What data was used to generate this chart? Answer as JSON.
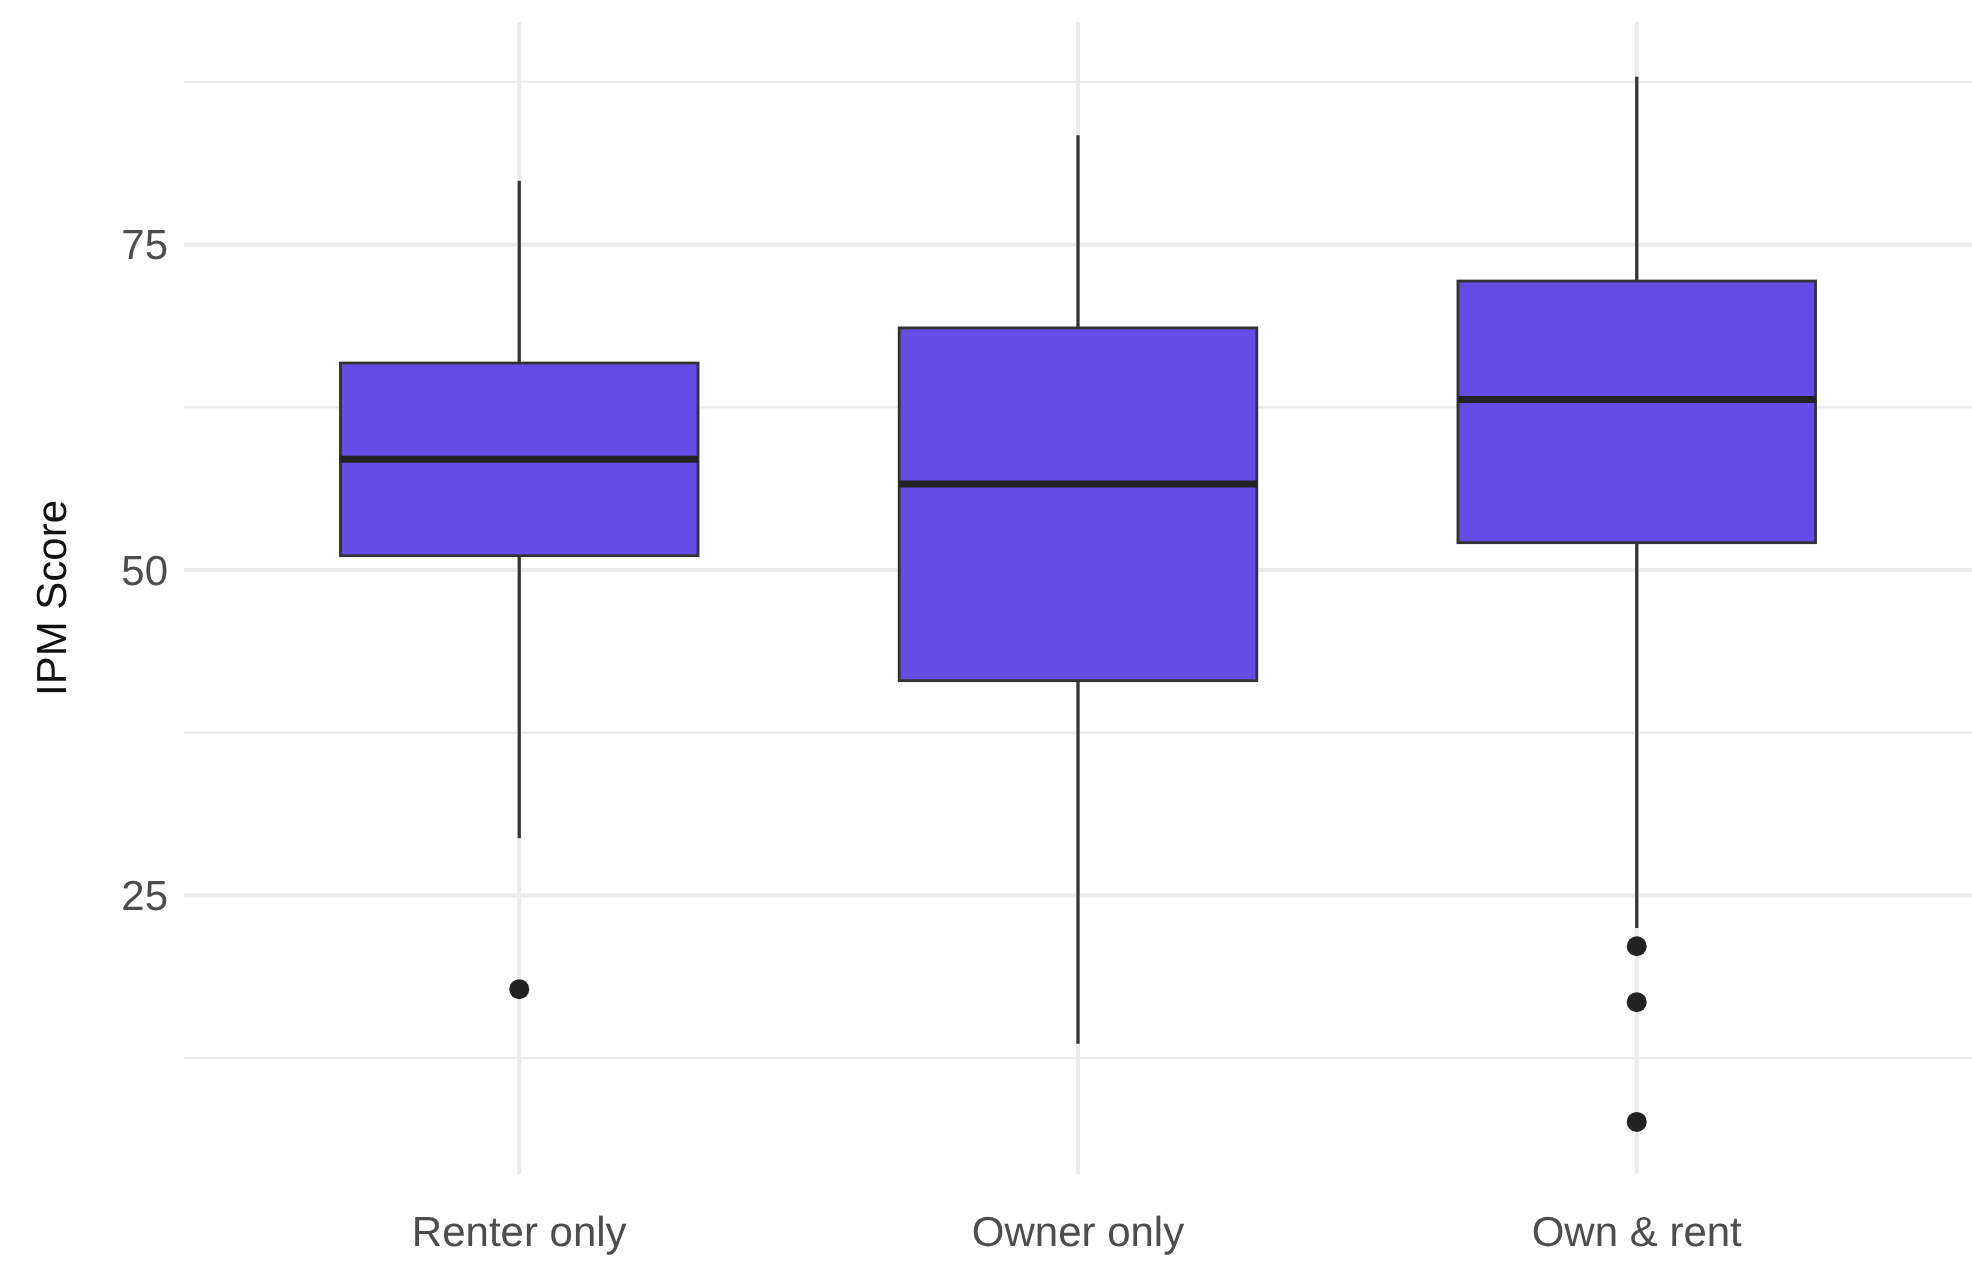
{
  "chart_data": {
    "type": "box",
    "ylabel": "IPM Score",
    "categories": [
      "Renter only",
      "Owner only",
      "Own & rent"
    ],
    "boxes": [
      {
        "low": 29.4,
        "q1": 51.1,
        "median": 58.5,
        "q3": 65.9,
        "high": 79.9,
        "outliers": [
          17.8
        ]
      },
      {
        "low": 13.6,
        "q1": 41.5,
        "median": 56.6,
        "q3": 68.6,
        "high": 83.4
      },
      {
        "low": 22.5,
        "q1": 52.1,
        "median": 63.1,
        "q3": 72.2,
        "high": 87.9,
        "outliers": [
          21.1,
          16.8,
          7.6
        ]
      }
    ],
    "color": "#654ce6",
    "ylim": [
      3.6,
      92.1
    ],
    "yticks": [
      {
        "value": 12.5,
        "label": null
      },
      25,
      {
        "value": 37.5,
        "label": null
      },
      50,
      {
        "value": 62.5,
        "label": null
      },
      75,
      {
        "value": 87.5,
        "label": null
      }
    ],
    "grid": true
  }
}
